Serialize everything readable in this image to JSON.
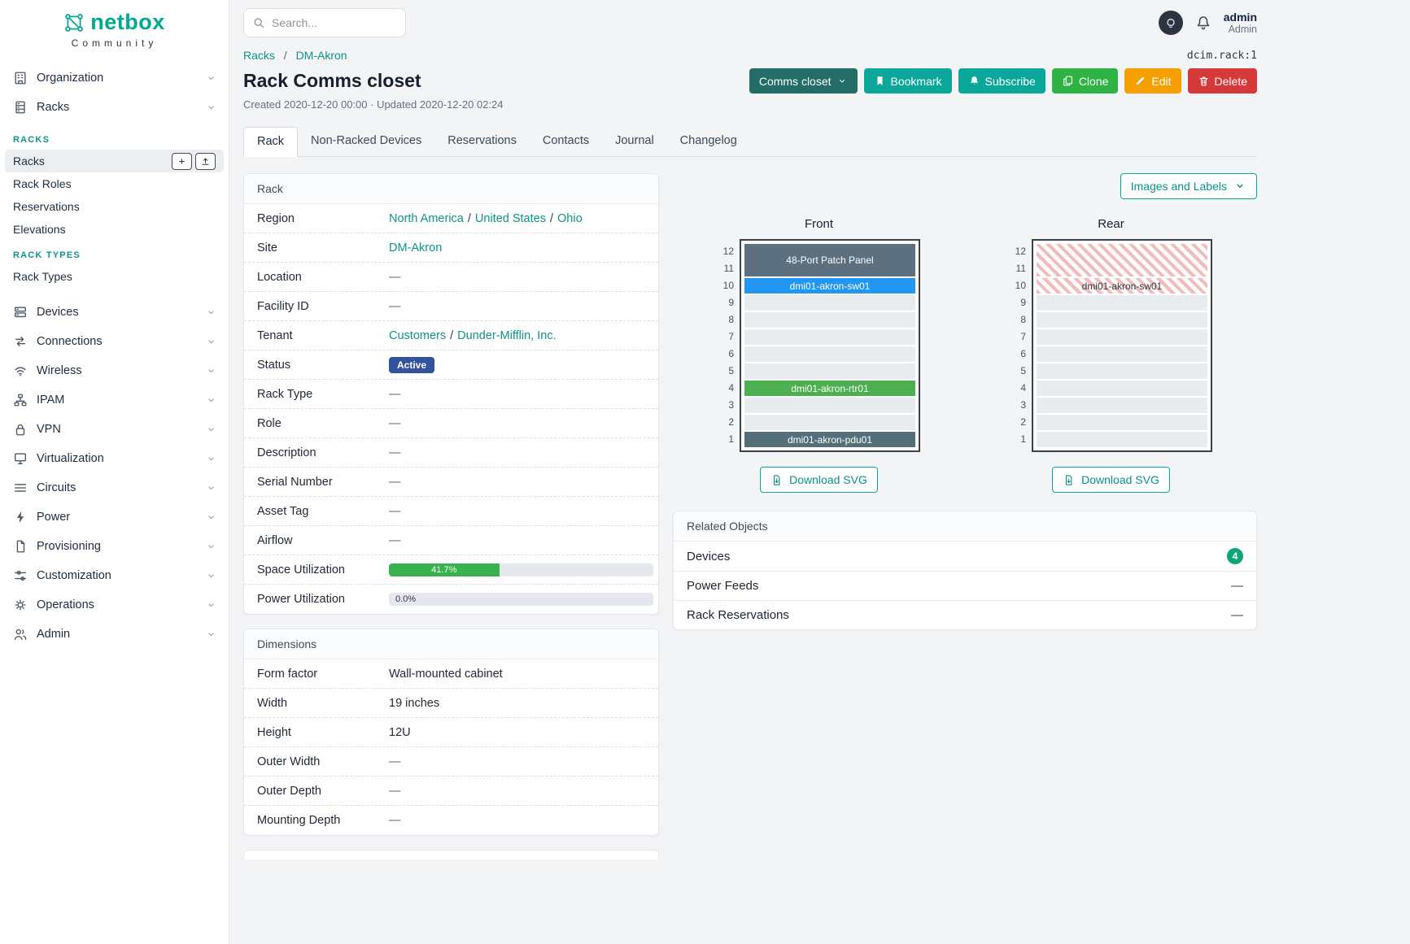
{
  "brand": {
    "name": "netbox",
    "community": "Community"
  },
  "topbar": {
    "search_placeholder": "Search...",
    "user_name": "admin",
    "user_role": "Admin"
  },
  "link_separator": "/",
  "sidebar": {
    "items": [
      {
        "label": "Organization",
        "icon": "organization"
      },
      {
        "label": "Racks",
        "icon": "racks",
        "expanded": true
      },
      {
        "label": "Devices",
        "icon": "devices"
      },
      {
        "label": "Connections",
        "icon": "connections"
      },
      {
        "label": "Wireless",
        "icon": "wireless"
      },
      {
        "label": "IPAM",
        "icon": "ipam"
      },
      {
        "label": "VPN",
        "icon": "vpn"
      },
      {
        "label": "Virtualization",
        "icon": "virtualization"
      },
      {
        "label": "Circuits",
        "icon": "circuits"
      },
      {
        "label": "Power",
        "icon": "power"
      },
      {
        "label": "Provisioning",
        "icon": "provisioning"
      },
      {
        "label": "Customization",
        "icon": "customization"
      },
      {
        "label": "Operations",
        "icon": "operations"
      },
      {
        "label": "Admin",
        "icon": "admin"
      }
    ],
    "racks_menu": [
      {
        "title": "RACKS",
        "items": [
          {
            "label": "Racks",
            "active": true,
            "actions": [
              "add",
              "import"
            ]
          },
          {
            "label": "Rack Roles"
          },
          {
            "label": "Reservations"
          },
          {
            "label": "Elevations"
          }
        ]
      },
      {
        "title": "RACK TYPES",
        "items": [
          {
            "label": "Rack Types"
          }
        ]
      }
    ]
  },
  "breadcrumb": {
    "items": [
      "Racks",
      "DM-Akron"
    ],
    "separator": "/"
  },
  "page": {
    "object_ref": "dcim.rack:1",
    "title": "Rack Comms closet",
    "meta": "Created 2020-12-20 00:00 · Updated 2020-12-20 02:24"
  },
  "action_buttons": [
    {
      "label": "Comms closet",
      "style": "slate",
      "caret": true
    },
    {
      "label": "Bookmark",
      "style": "teal",
      "icon": "bookmark"
    },
    {
      "label": "Subscribe",
      "style": "teal",
      "icon": "bell"
    },
    {
      "label": "Clone",
      "style": "green",
      "icon": "copy"
    },
    {
      "label": "Edit",
      "style": "orange",
      "icon": "pencil"
    },
    {
      "label": "Delete",
      "style": "red",
      "icon": "trash"
    }
  ],
  "tabs": [
    {
      "label": "Rack",
      "active": true
    },
    {
      "label": "Non-Racked Devices"
    },
    {
      "label": "Reservations"
    },
    {
      "label": "Contacts"
    },
    {
      "label": "Journal"
    },
    {
      "label": "Changelog"
    }
  ],
  "rack_card": {
    "title": "Rack",
    "rows": [
      {
        "label": "Region",
        "links": [
          "North America",
          "United States",
          "Ohio"
        ]
      },
      {
        "label": "Site",
        "links": [
          "DM-Akron"
        ]
      },
      {
        "label": "Location",
        "value": "—"
      },
      {
        "label": "Facility ID",
        "value": "—"
      },
      {
        "label": "Tenant",
        "links": [
          "Customers",
          "Dunder-Mifflin, Inc."
        ]
      },
      {
        "label": "Status",
        "badge": {
          "text": "Active",
          "color": "#33539e"
        }
      },
      {
        "label": "Rack Type",
        "value": "—"
      },
      {
        "label": "Role",
        "value": "—"
      },
      {
        "label": "Description",
        "value": "—"
      },
      {
        "label": "Serial Number",
        "value": "—"
      },
      {
        "label": "Asset Tag",
        "value": "—"
      },
      {
        "label": "Airflow",
        "value": "—"
      },
      {
        "label": "Space Utilization",
        "progress": {
          "percent": 41.7,
          "label": "41.7%",
          "color": "#37b24d"
        }
      },
      {
        "label": "Power Utilization",
        "progress": {
          "percent": 0,
          "label": "0.0%",
          "color": "#37b24d"
        }
      }
    ]
  },
  "dimensions_card": {
    "title": "Dimensions",
    "rows": [
      {
        "label": "Form factor",
        "value": "Wall-mounted cabinet"
      },
      {
        "label": "Width",
        "value": "19 inches"
      },
      {
        "label": "Height",
        "value": "12U"
      },
      {
        "label": "Outer Width",
        "value": "—"
      },
      {
        "label": "Outer Depth",
        "value": "—"
      },
      {
        "label": "Mounting Depth",
        "value": "—"
      }
    ]
  },
  "elevations": {
    "toolbar_button": "Images and Labels",
    "download_label": "Download SVG",
    "units": 12,
    "views": [
      {
        "title": "Front",
        "devices": [
          {
            "name": "48-Port Patch Panel",
            "unit": 12,
            "height": 2,
            "color": "#5c7080",
            "text_color": "#ffffff"
          },
          {
            "name": "dmi01-akron-sw01",
            "unit": 10,
            "height": 1,
            "color": "#2196f3",
            "text_color": "#ffffff"
          },
          {
            "name": "dmi01-akron-rtr01",
            "unit": 4,
            "height": 1,
            "color": "#4caf50",
            "text_color": "#ffffff"
          },
          {
            "name": "dmi01-akron-pdu01",
            "unit": 1,
            "height": 1,
            "color": "#546e7a",
            "text_color": "#ffffff"
          }
        ]
      },
      {
        "title": "Rear",
        "devices": [
          {
            "name": "",
            "unit": 12,
            "height": 2,
            "hatched": true
          },
          {
            "name": "dmi01-akron-sw01",
            "unit": 10,
            "height": 1,
            "hatched": true,
            "text_color": "#343a40"
          }
        ]
      }
    ]
  },
  "related_objects": {
    "title": "Related Objects",
    "rows": [
      {
        "label": "Devices",
        "badge": "4"
      },
      {
        "label": "Power Feeds",
        "value": "—"
      },
      {
        "label": "Rack Reservations",
        "value": "—"
      }
    ]
  }
}
